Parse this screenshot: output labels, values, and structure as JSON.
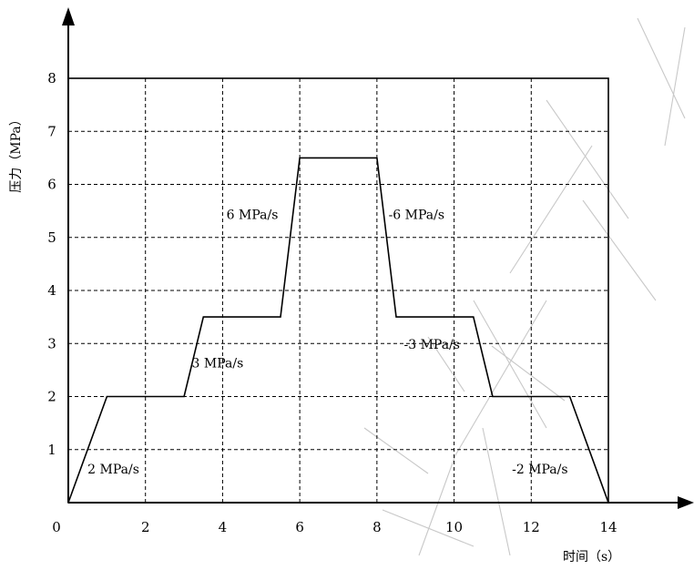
{
  "chart_data": {
    "type": "line",
    "xlabel": "时间（s）",
    "ylabel": "压力（MPa）",
    "xlim": [
      0,
      14
    ],
    "ylim": [
      0,
      8
    ],
    "x_ticks": [
      0,
      2,
      4,
      6,
      8,
      10,
      12,
      14
    ],
    "y_ticks": [
      1,
      2,
      3,
      4,
      5,
      6,
      7,
      8
    ],
    "grid": true,
    "series": [
      {
        "x": [
          0,
          1,
          3,
          3.5,
          5.5,
          6,
          8,
          8.5,
          10.5,
          11,
          13,
          14
        ],
        "y": [
          0,
          2,
          2,
          3.5,
          3.5,
          6.5,
          6.5,
          3.5,
          3.5,
          2,
          2,
          0
        ]
      }
    ],
    "annotations": [
      {
        "text": "2 MPa/s",
        "x": 0.5,
        "y": 0.55
      },
      {
        "text": "3 MPa/s",
        "x": 3.2,
        "y": 2.55
      },
      {
        "text": "6 MPa/s",
        "x": 4.1,
        "y": 5.35
      },
      {
        "text": "-6 MPa/s",
        "x": 8.3,
        "y": 5.35
      },
      {
        "text": "-3 MPa/s",
        "x": 8.7,
        "y": 2.9
      },
      {
        "text": "-2 MPa/s",
        "x": 11.5,
        "y": 0.55
      }
    ]
  }
}
